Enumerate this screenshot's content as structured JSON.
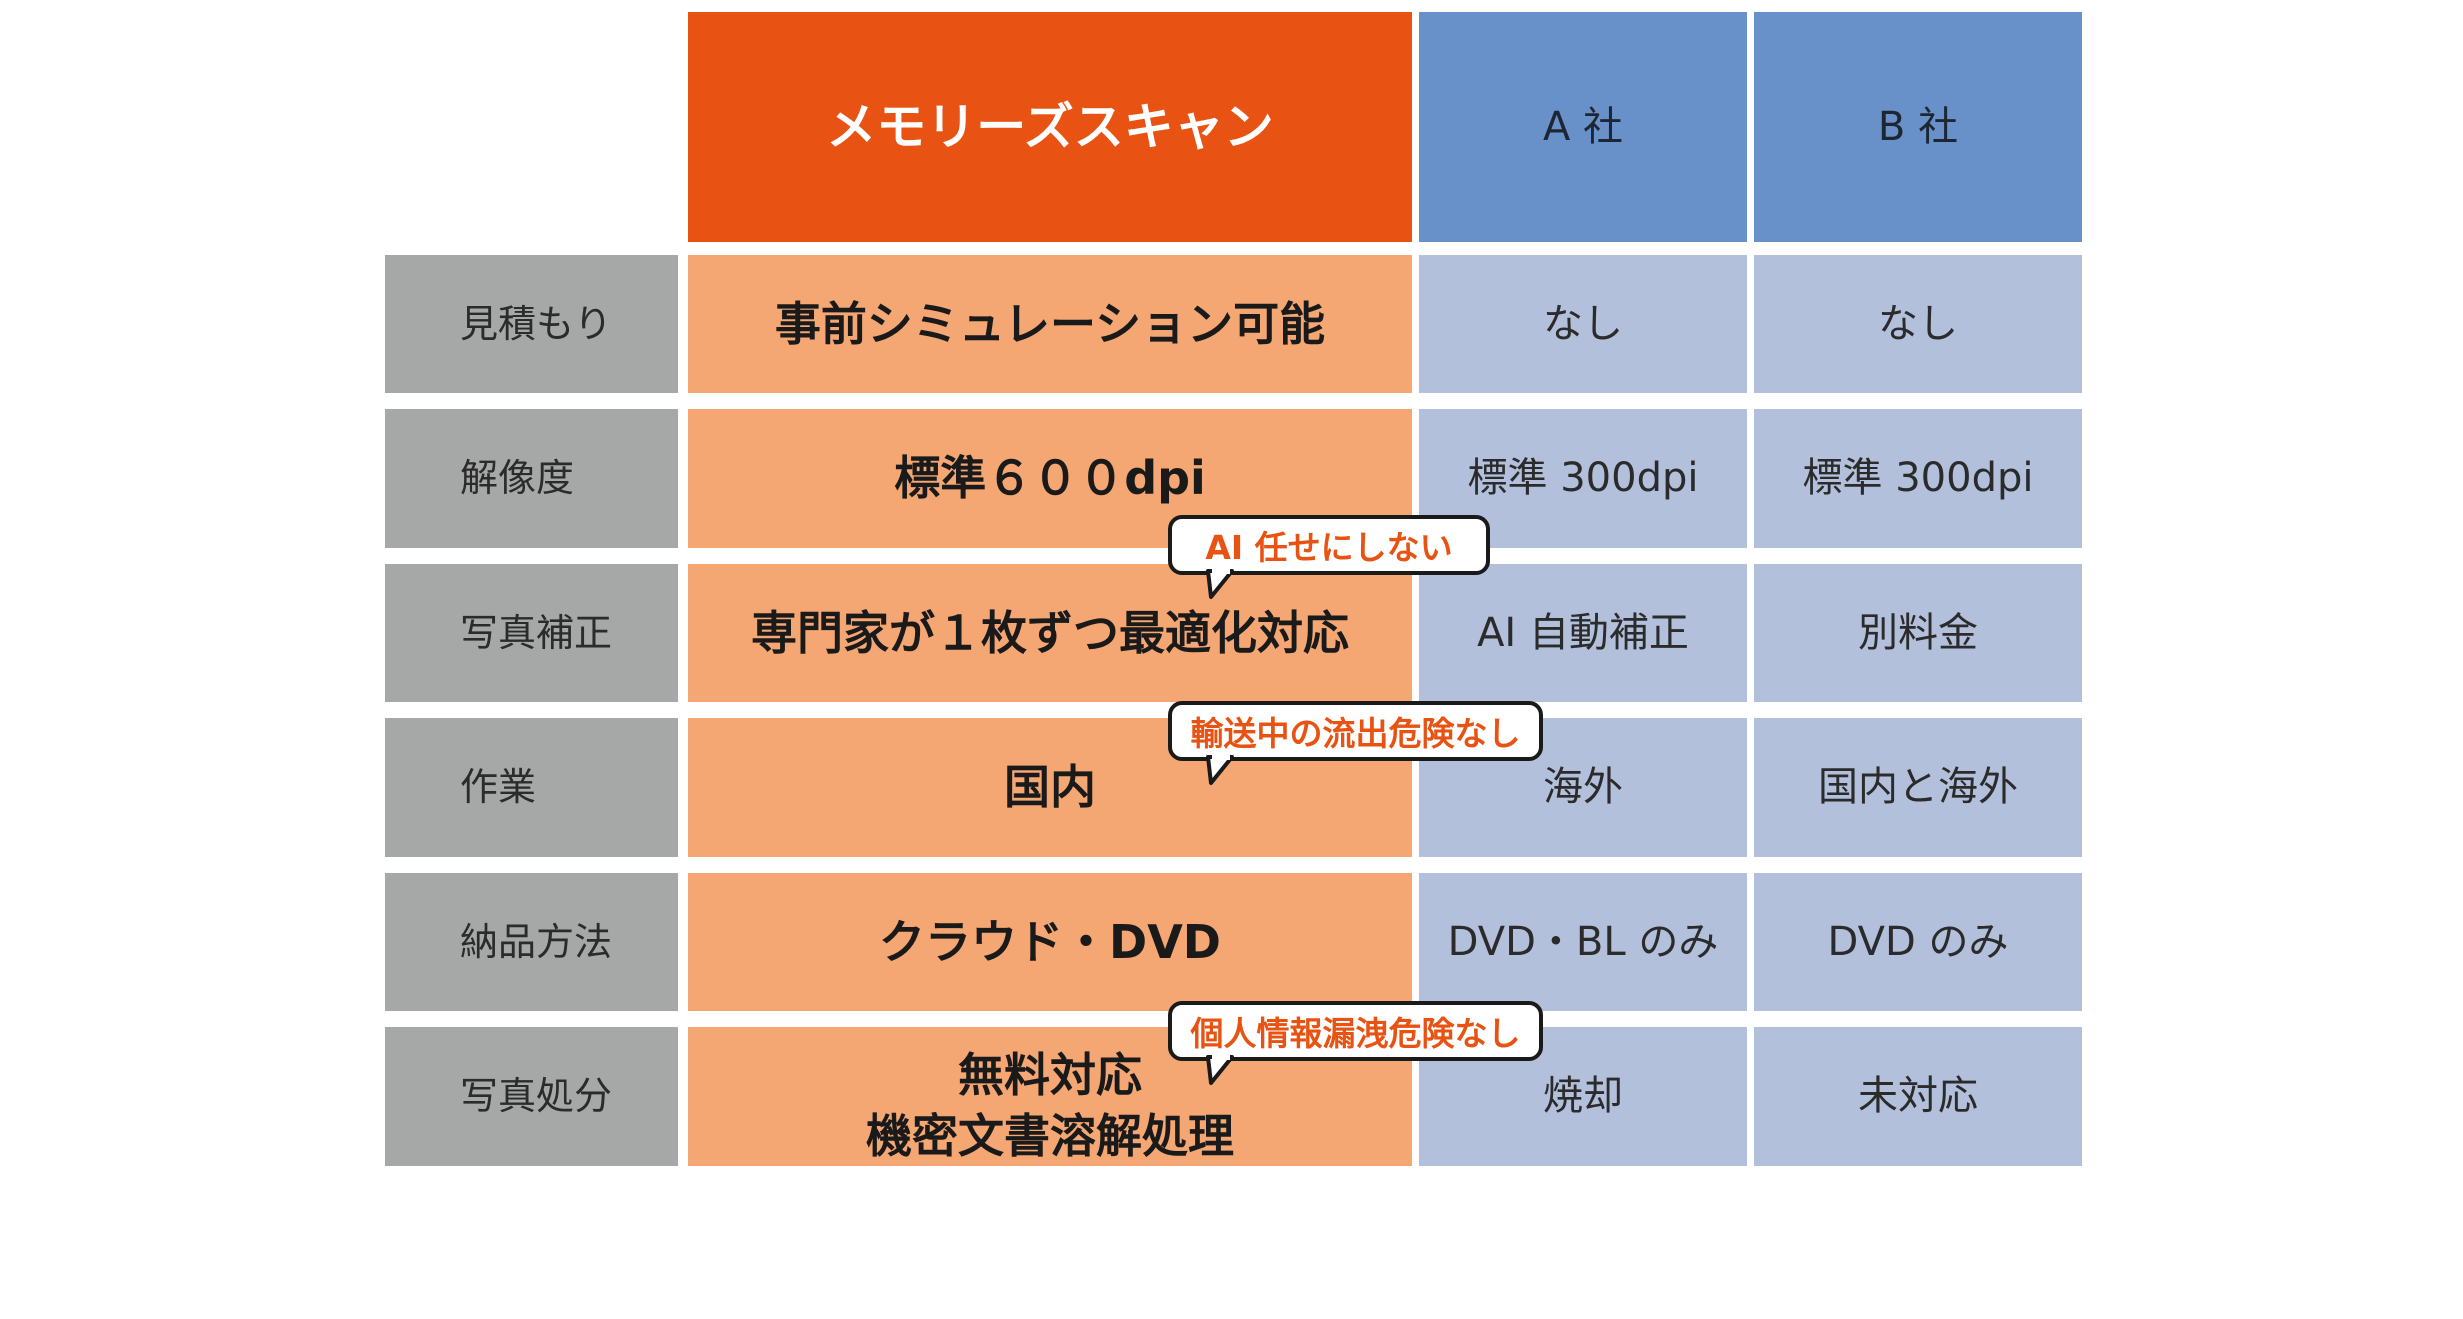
{
  "header": {
    "main": "メモリーズスキャン",
    "company_a": "A 社",
    "company_b": "B 社"
  },
  "rows": [
    {
      "label": "見積もり",
      "main": "事前シミュレーション可能",
      "a": "なし",
      "b": "なし"
    },
    {
      "label": "解像度",
      "main": "標準６００dpi",
      "a": "標準 300dpi",
      "b": "標準 300dpi"
    },
    {
      "label": "写真補正",
      "main": "専門家が１枚ずつ最適化対応",
      "a": "AI 自動補正",
      "b": "別料金"
    },
    {
      "label": "作業",
      "main": "国内",
      "a": "海外",
      "b": "国内と海外"
    },
    {
      "label": "納品方法",
      "main": "クラウド・DVD",
      "a": "DVD・BL のみ",
      "b": "DVD のみ"
    },
    {
      "label": "写真処分",
      "main_line1": "無料対応",
      "main_line2": "機密文書溶解処理",
      "a": "焼却",
      "b": "未対応"
    }
  ],
  "callouts": {
    "ai": "AI 任せにしない",
    "domestic": "輸送中の流出危険なし",
    "privacy": "個人情報漏洩危険なし"
  },
  "colors": {
    "brand_orange": "#e85314",
    "main_cell": "#f4a673",
    "company_header": "#6891ca",
    "company_cell": "#b3c0dc",
    "label_cell": "#a6a7a7"
  }
}
